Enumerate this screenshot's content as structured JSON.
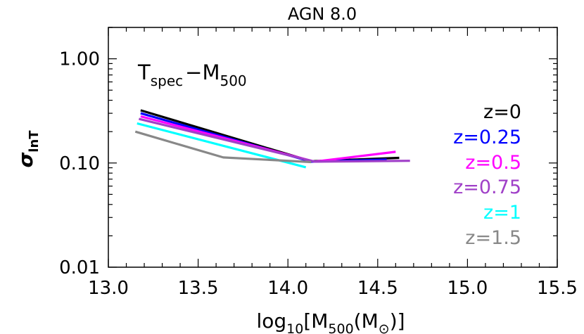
{
  "chart_data": {
    "type": "line",
    "title": "AGN 8.0",
    "annotation": {
      "main": "T",
      "sub1": "spec",
      "dash": "−",
      "main2": "M",
      "sub2": "500"
    },
    "xlabel": {
      "pre": "log",
      "sub1": "10",
      "mid": "[M",
      "sub2": "500",
      "post1": "(M",
      "post2": ")]"
    },
    "ylabel": {
      "main": "σ",
      "sub": "lnT"
    },
    "xlim": [
      13.0,
      15.5
    ],
    "ylim": [
      0.01,
      2.0
    ],
    "yscale": "log",
    "xticks": [
      "13.0",
      "13.5",
      "14.0",
      "14.5",
      "15.0",
      "15.5"
    ],
    "yticks": [
      "0.01",
      "0.10",
      "1.00"
    ],
    "legend_placement": "right",
    "series": [
      {
        "name": "z=0",
        "color": "#000000",
        "x": [
          13.18,
          14.13,
          14.62
        ],
        "y": [
          0.32,
          0.104,
          0.112
        ]
      },
      {
        "name": "z=0.25",
        "color": "#0000ff",
        "x": [
          13.18,
          14.13,
          14.55
        ],
        "y": [
          0.3,
          0.103,
          0.108
        ]
      },
      {
        "name": "z=0.5",
        "color": "#ff00ff",
        "x": [
          13.18,
          14.15,
          14.6
        ],
        "y": [
          0.28,
          0.103,
          0.128
        ]
      },
      {
        "name": "z=0.75",
        "color": "#a040c8",
        "x": [
          13.17,
          14.15,
          14.68
        ],
        "y": [
          0.265,
          0.103,
          0.105
        ]
      },
      {
        "name": "z=1",
        "color": "#00ffff",
        "x": [
          13.16,
          14.1
        ],
        "y": [
          0.24,
          0.091
        ]
      },
      {
        "name": "z=1.5",
        "color": "#888888",
        "x": [
          13.15,
          13.64,
          14.13
        ],
        "y": [
          0.2,
          0.113,
          0.102
        ]
      }
    ]
  }
}
